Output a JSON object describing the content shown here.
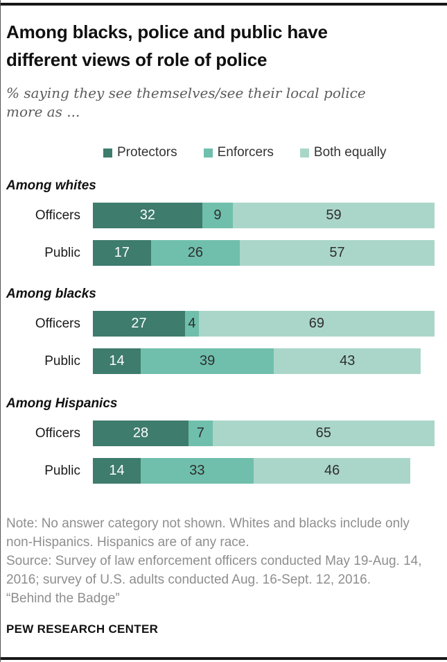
{
  "page": {
    "title": "Among blacks, police and public have different views of role of police",
    "subtitle": "% saying they see themselves/see their local police more as ...",
    "note_lines": [
      "Note: No answer category not shown. Whites and blacks include only non-Hispanics. Hispanics are of any race.",
      "Source: Survey of law enforcement officers conducted May 19-Aug. 14, 2016; survey of U.S. adults conducted Aug. 16-Sept. 12, 2016.",
      "“Behind the Badge”"
    ],
    "footer_brand": "PEW RESEARCH CENTER"
  },
  "legend": [
    {
      "label": "Protectors",
      "color": "#3e7c6d"
    },
    {
      "label": "Enforcers",
      "color": "#6fbfac"
    },
    {
      "label": "Both equally",
      "color": "#aad6c9"
    }
  ],
  "chart_data": {
    "type": "bar",
    "orientation": "horizontal",
    "stacked": true,
    "unit": "%",
    "xlim": [
      0,
      100
    ],
    "grid": false,
    "legend_position": "top",
    "series_names": [
      "Protectors",
      "Enforcers",
      "Both equally"
    ],
    "colors": [
      "#3e7c6d",
      "#6fbfac",
      "#aad6c9"
    ],
    "groups": [
      {
        "label": "Among whites",
        "rows": [
          {
            "category": "Officers",
            "values": [
              32,
              9,
              59
            ]
          },
          {
            "category": "Public",
            "values": [
              17,
              26,
              57
            ]
          }
        ]
      },
      {
        "label": "Among blacks",
        "rows": [
          {
            "category": "Officers",
            "values": [
              27,
              4,
              69
            ]
          },
          {
            "category": "Public",
            "values": [
              14,
              39,
              43
            ]
          }
        ]
      },
      {
        "label": "Among Hispanics",
        "rows": [
          {
            "category": "Officers",
            "values": [
              28,
              7,
              65
            ]
          },
          {
            "category": "Public",
            "values": [
              14,
              33,
              46
            ]
          }
        ]
      }
    ]
  }
}
